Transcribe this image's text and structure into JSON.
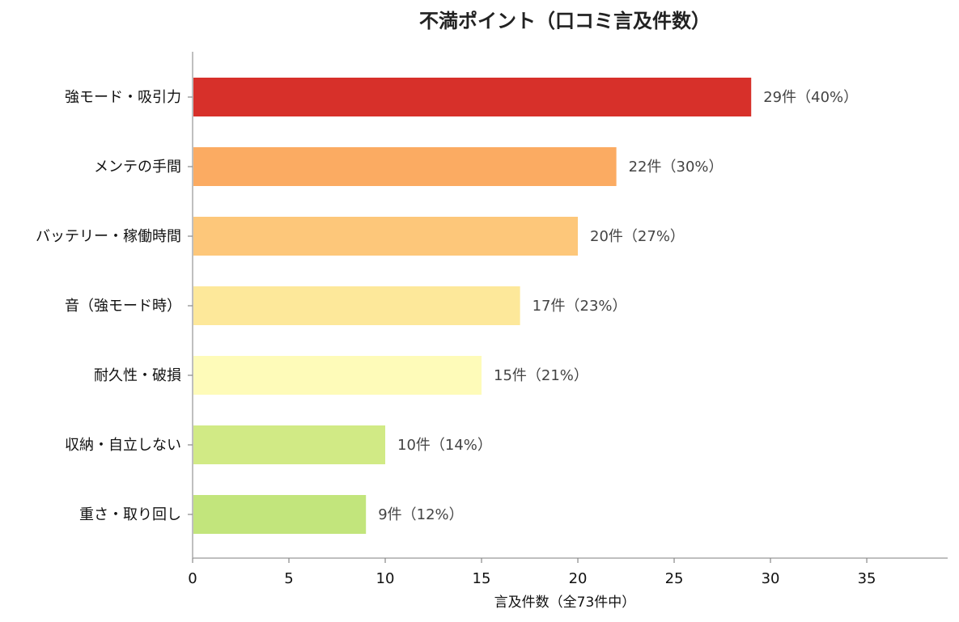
{
  "chart_data": {
    "type": "bar",
    "orientation": "horizontal",
    "title": "不満ポイント（口コミ言及件数）",
    "xlabel": "言及件数（全73件中）",
    "ylabel": "",
    "xlim": [
      0,
      39.2
    ],
    "xticks": [
      0,
      5,
      10,
      15,
      20,
      25,
      30,
      35
    ],
    "grid": false,
    "categories": [
      "強モード・吸引力",
      "メンテの手間",
      "バッテリー・稼働時間",
      "音（強モード時）",
      "耐久性・破損",
      "収納・自立しない",
      "重さ・取り回し"
    ],
    "values": [
      29,
      22,
      20,
      17,
      15,
      10,
      9
    ],
    "data_labels": [
      "29件（40%）",
      "22件（30%）",
      "20件（27%）",
      "17件（23%）",
      "15件（21%）",
      "10件（14%）",
      "9件（12%）"
    ],
    "colors": [
      "#d7302a",
      "#fbab62",
      "#fdc77a",
      "#fde89a",
      "#fefbb9",
      "#d1ea85",
      "#c2e57c"
    ]
  }
}
